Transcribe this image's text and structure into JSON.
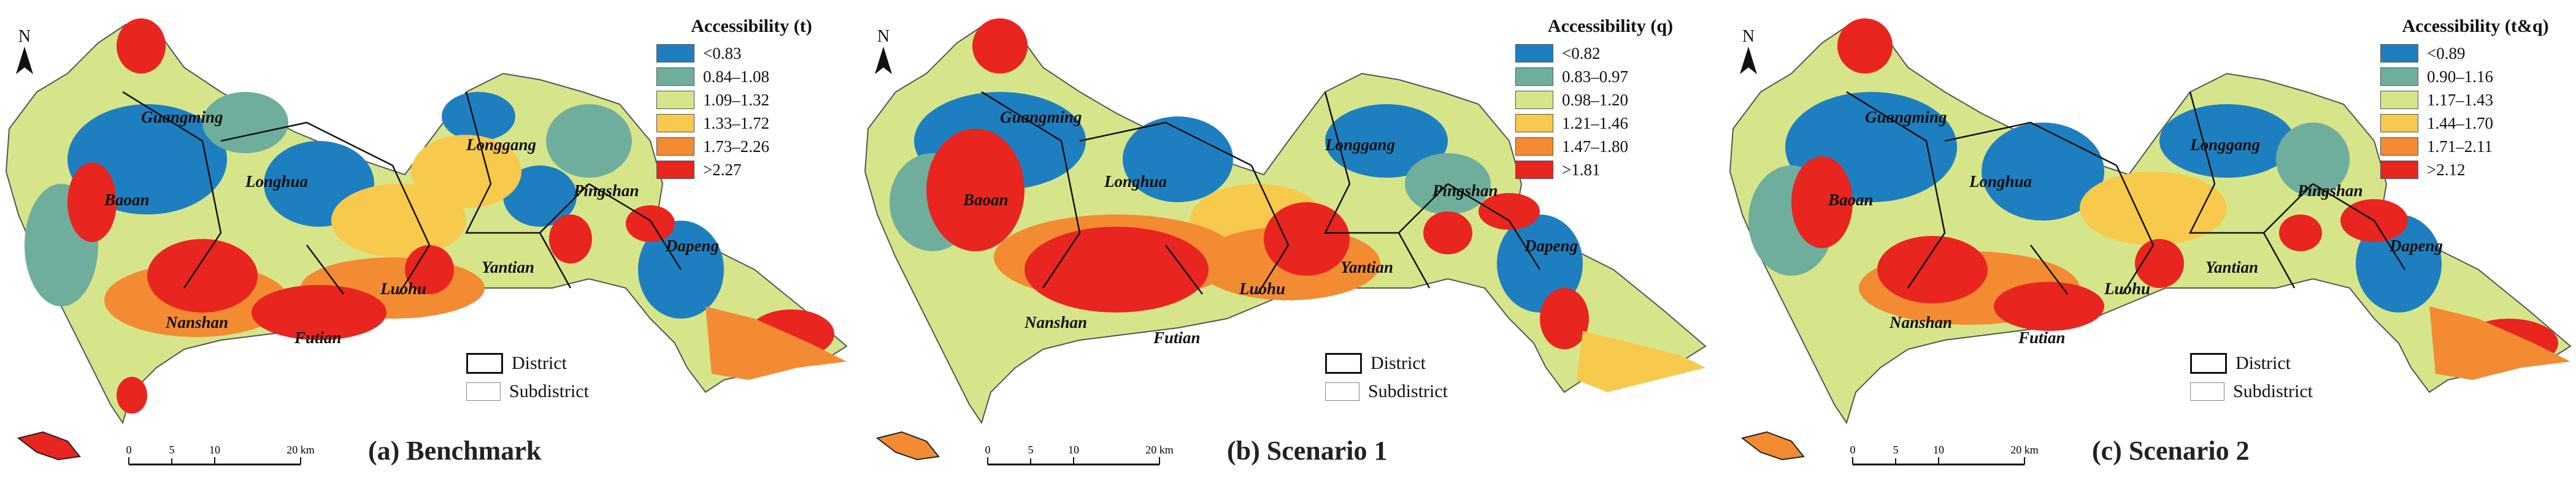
{
  "figure": {
    "colors": {
      "class1": "#1e7fc0",
      "class2": "#6fae9c",
      "class3": "#d6e58a",
      "class4": "#f7c94c",
      "class5": "#f38b33",
      "class6": "#e8251f",
      "district_border": "#111111",
      "subdistrict_border": "#888888"
    },
    "north_label": "N",
    "scalebar": {
      "ticks": [
        "0",
        "5",
        "10",
        "20 km"
      ]
    },
    "boundary_legend": {
      "district": "District",
      "subdistrict": "Subdistrict"
    },
    "district_names": [
      "Guangming",
      "Baoan",
      "Longhua",
      "Longgang",
      "Pingshan",
      "Dapeng",
      "Yantian",
      "Luohu",
      "Futian",
      "Nanshan"
    ]
  },
  "panels": [
    {
      "caption": "(a) Benchmark",
      "legend_title": "Accessibility (t)",
      "legend_items": [
        "<0.83",
        "0.84–1.08",
        "1.09–1.32",
        "1.33–1.72",
        "1.73–2.26",
        ">2.27"
      ],
      "inset_icon": "island-icon-red"
    },
    {
      "caption": "(b) Scenario 1",
      "legend_title": "Accessibility (q)",
      "legend_items": [
        "<0.82",
        "0.83–0.97",
        "0.98–1.20",
        "1.21–1.46",
        "1.47–1.80",
        ">1.81"
      ],
      "inset_icon": "island-icon-orange"
    },
    {
      "caption": "(c) Scenario 2",
      "legend_title": "Accessibility (t&q)",
      "legend_items": [
        "<0.89",
        "0.90–1.16",
        "1.17–1.43",
        "1.44–1.70",
        "1.71–2.11",
        ">2.12"
      ],
      "inset_icon": "island-icon-orange"
    }
  ]
}
